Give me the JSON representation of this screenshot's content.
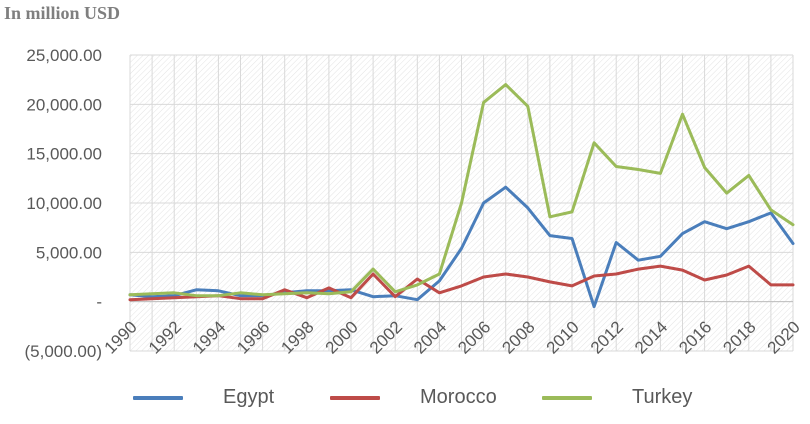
{
  "chart_data": {
    "type": "line",
    "unit_label": "In million USD",
    "x": [
      1990,
      1991,
      1992,
      1993,
      1994,
      1995,
      1996,
      1997,
      1998,
      1999,
      2000,
      2001,
      2002,
      2003,
      2004,
      2005,
      2006,
      2007,
      2008,
      2009,
      2010,
      2011,
      2012,
      2013,
      2014,
      2015,
      2016,
      2017,
      2018,
      2019,
      2020
    ],
    "x_tick_labels": [
      "1990",
      "1992",
      "1994",
      "1996",
      "1998",
      "2000",
      "2002",
      "2004",
      "2006",
      "2008",
      "2010",
      "2012",
      "2014",
      "2016",
      "2018",
      "2020"
    ],
    "y_tick_labels": [
      "(5,000.00)",
      "-",
      "5,000.00",
      "10,000.00",
      "15,000.00",
      "20,000.00",
      "25,000.00"
    ],
    "ylim": [
      -5000,
      25000
    ],
    "grid": true,
    "legend_position": "bottom",
    "series": [
      {
        "name": "Egypt",
        "color": "#4a7ebb",
        "values": [
          700,
          500,
          600,
          1200,
          1100,
          600,
          600,
          900,
          1100,
          1100,
          1200,
          500,
          600,
          200,
          2100,
          5400,
          10000,
          11600,
          9500,
          6700,
          6400,
          -500,
          6000,
          4200,
          4600,
          6900,
          8100,
          7400,
          8100,
          9000,
          5900
        ]
      },
      {
        "name": "Morocco",
        "color": "#be4b48",
        "values": [
          200,
          300,
          400,
          500,
          600,
          300,
          300,
          1200,
          400,
          1400,
          400,
          2800,
          500,
          2300,
          900,
          1600,
          2500,
          2800,
          2500,
          2000,
          1600,
          2600,
          2800,
          3300,
          3600,
          3200,
          2200,
          2700,
          3600,
          1700,
          1700
        ]
      },
      {
        "name": "Turkey",
        "color": "#9bbb59",
        "values": [
          700,
          800,
          900,
          600,
          600,
          900,
          700,
          800,
          900,
          800,
          1000,
          3300,
          1000,
          1700,
          2800,
          10000,
          20200,
          22000,
          19800,
          8600,
          9100,
          16100,
          13700,
          13400,
          13000,
          19000,
          13600,
          11000,
          12800,
          9300,
          7800
        ]
      }
    ]
  }
}
